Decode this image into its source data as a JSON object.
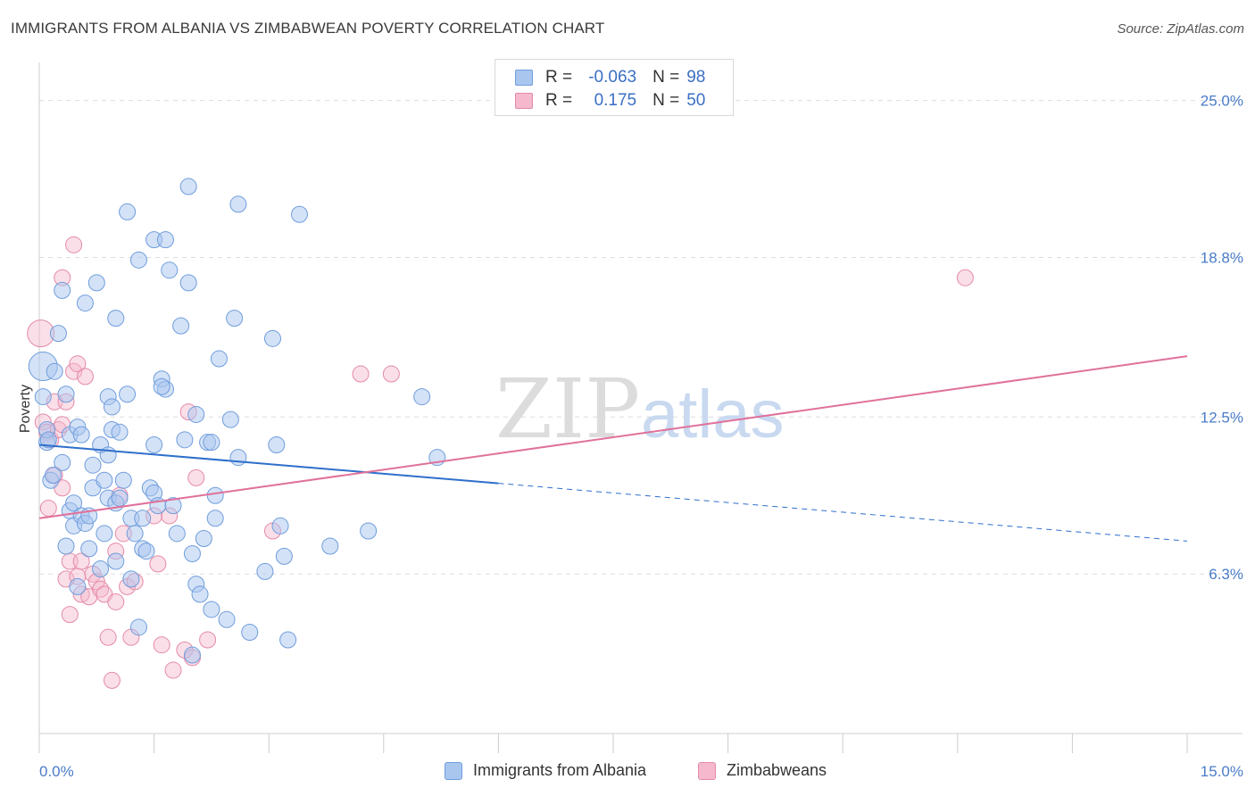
{
  "title": "IMMIGRANTS FROM ALBANIA VS ZIMBABWEAN POVERTY CORRELATION CHART",
  "source": "Source: ZipAtlas.com",
  "watermark": {
    "zip": "ZIP",
    "atlas": "atlas"
  },
  "legend_top": [
    {
      "r_label": "R =",
      "r_value": "-0.063",
      "n_label": "N =",
      "n_value": "98"
    },
    {
      "r_label": "R =",
      "r_value": "0.175",
      "n_label": "N =",
      "n_value": "50"
    }
  ],
  "legend_bottom": [
    "Immigrants from Albania",
    "Zimbabweans"
  ],
  "colors": {
    "blue_fill": "#a9c6ef",
    "blue_stroke": "#6f9ddc",
    "blue_line": "#2e6fcb",
    "pink_fill": "#f5b8cc",
    "pink_stroke": "#e58aa8",
    "pink_line": "#e0719b",
    "grid": "#dddddd",
    "tick_text": "#4a7cc8"
  },
  "chart_data": {
    "type": "scatter",
    "title": "IMMIGRANTS FROM ALBANIA VS ZIMBABWEAN POVERTY CORRELATION CHART",
    "xlabel": "",
    "ylabel": "Poverty",
    "xlim": [
      0,
      15
    ],
    "ylim": [
      0,
      26.5
    ],
    "x_tick_labels": [
      "0.0%",
      "15.0%"
    ],
    "y_ticks": [
      6.3,
      12.5,
      18.8,
      25.0
    ],
    "y_tick_labels": [
      "6.3%",
      "12.5%",
      "18.8%",
      "25.0%"
    ],
    "grid": true,
    "series": [
      {
        "name": "Immigrants from Albania",
        "color": "#a9c6ef",
        "r": -0.063,
        "n": 98,
        "trend": {
          "x0": 0,
          "y0": 11.4,
          "x_solid_end": 6.0,
          "x1": 15,
          "y1": 7.6
        },
        "points": [
          [
            0.05,
            14.5
          ],
          [
            0.05,
            13.3
          ],
          [
            0.1,
            11.5
          ],
          [
            0.1,
            12.0
          ],
          [
            0.15,
            10.0
          ],
          [
            0.2,
            14.3
          ],
          [
            0.25,
            15.8
          ],
          [
            0.3,
            17.5
          ],
          [
            0.3,
            10.7
          ],
          [
            0.35,
            13.4
          ],
          [
            0.35,
            7.4
          ],
          [
            0.4,
            11.8
          ],
          [
            0.4,
            8.8
          ],
          [
            0.45,
            9.1
          ],
          [
            0.45,
            8.2
          ],
          [
            0.5,
            5.8
          ],
          [
            0.5,
            12.1
          ],
          [
            0.55,
            8.6
          ],
          [
            0.6,
            8.3
          ],
          [
            0.6,
            17.0
          ],
          [
            0.65,
            8.6
          ],
          [
            0.65,
            7.3
          ],
          [
            0.7,
            10.6
          ],
          [
            0.7,
            9.7
          ],
          [
            0.75,
            17.8
          ],
          [
            0.8,
            11.4
          ],
          [
            0.8,
            6.5
          ],
          [
            0.85,
            10.0
          ],
          [
            0.85,
            7.9
          ],
          [
            0.9,
            9.3
          ],
          [
            0.9,
            11.0
          ],
          [
            0.9,
            13.3
          ],
          [
            0.95,
            12.0
          ],
          [
            0.95,
            12.9
          ],
          [
            1.0,
            6.8
          ],
          [
            1.0,
            9.1
          ],
          [
            1.0,
            16.4
          ],
          [
            1.05,
            11.9
          ],
          [
            1.1,
            10.0
          ],
          [
            1.15,
            13.4
          ],
          [
            1.15,
            20.6
          ],
          [
            1.2,
            8.5
          ],
          [
            1.2,
            6.1
          ],
          [
            1.25,
            7.9
          ],
          [
            1.3,
            18.7
          ],
          [
            1.3,
            4.2
          ],
          [
            1.35,
            7.3
          ],
          [
            1.35,
            8.5
          ],
          [
            1.4,
            7.2
          ],
          [
            1.45,
            9.7
          ],
          [
            1.5,
            9.5
          ],
          [
            1.5,
            19.5
          ],
          [
            1.5,
            11.4
          ],
          [
            1.55,
            9.0
          ],
          [
            1.6,
            14.0
          ],
          [
            1.65,
            13.6
          ],
          [
            1.65,
            19.5
          ],
          [
            1.7,
            18.3
          ],
          [
            1.75,
            9.0
          ],
          [
            1.8,
            7.9
          ],
          [
            1.85,
            16.1
          ],
          [
            1.9,
            11.6
          ],
          [
            1.95,
            21.6
          ],
          [
            1.95,
            17.8
          ],
          [
            2.0,
            7.1
          ],
          [
            2.0,
            3.1
          ],
          [
            2.05,
            12.6
          ],
          [
            2.05,
            5.9
          ],
          [
            2.1,
            5.5
          ],
          [
            2.15,
            7.7
          ],
          [
            2.2,
            11.5
          ],
          [
            2.25,
            11.5
          ],
          [
            2.25,
            4.9
          ],
          [
            2.3,
            8.5
          ],
          [
            2.3,
            9.4
          ],
          [
            2.35,
            14.8
          ],
          [
            2.45,
            4.5
          ],
          [
            2.5,
            12.4
          ],
          [
            2.55,
            16.4
          ],
          [
            2.6,
            10.9
          ],
          [
            2.6,
            20.9
          ],
          [
            2.75,
            4.0
          ],
          [
            2.95,
            6.4
          ],
          [
            3.05,
            15.6
          ],
          [
            3.1,
            11.4
          ],
          [
            3.15,
            8.2
          ],
          [
            3.2,
            7.0
          ],
          [
            3.25,
            3.7
          ],
          [
            3.4,
            20.5
          ],
          [
            3.8,
            7.4
          ],
          [
            4.3,
            8.0
          ],
          [
            5.0,
            13.3
          ],
          [
            5.2,
            10.9
          ],
          [
            0.12,
            11.6
          ],
          [
            0.18,
            10.2
          ],
          [
            0.55,
            11.8
          ],
          [
            1.05,
            9.3
          ],
          [
            1.6,
            13.7
          ]
        ]
      },
      {
        "name": "Zimbabweans",
        "color": "#f5b8cc",
        "r": 0.175,
        "n": 50,
        "trend": {
          "x0": 0,
          "y0": 8.5,
          "x1": 15,
          "y1": 14.9
        },
        "points": [
          [
            0.02,
            15.8
          ],
          [
            0.05,
            12.3
          ],
          [
            0.1,
            11.9
          ],
          [
            0.15,
            11.6
          ],
          [
            0.2,
            13.1
          ],
          [
            0.2,
            10.2
          ],
          [
            0.25,
            12.0
          ],
          [
            0.3,
            12.2
          ],
          [
            0.3,
            9.7
          ],
          [
            0.3,
            18.0
          ],
          [
            0.35,
            13.1
          ],
          [
            0.35,
            6.1
          ],
          [
            0.4,
            4.7
          ],
          [
            0.4,
            6.8
          ],
          [
            0.45,
            14.3
          ],
          [
            0.45,
            19.3
          ],
          [
            0.5,
            14.6
          ],
          [
            0.5,
            6.2
          ],
          [
            0.55,
            6.8
          ],
          [
            0.55,
            5.5
          ],
          [
            0.6,
            14.1
          ],
          [
            0.65,
            5.4
          ],
          [
            0.7,
            6.3
          ],
          [
            0.75,
            6.0
          ],
          [
            0.8,
            5.7
          ],
          [
            0.85,
            5.5
          ],
          [
            0.9,
            3.8
          ],
          [
            0.95,
            2.1
          ],
          [
            1.0,
            5.2
          ],
          [
            1.0,
            7.2
          ],
          [
            1.05,
            9.4
          ],
          [
            1.1,
            7.9
          ],
          [
            1.15,
            5.8
          ],
          [
            1.2,
            3.8
          ],
          [
            1.25,
            6.0
          ],
          [
            1.5,
            8.6
          ],
          [
            1.55,
            6.7
          ],
          [
            1.6,
            3.5
          ],
          [
            1.7,
            8.6
          ],
          [
            1.75,
            2.5
          ],
          [
            1.9,
            3.3
          ],
          [
            1.95,
            12.7
          ],
          [
            2.0,
            3.0
          ],
          [
            2.05,
            10.1
          ],
          [
            2.2,
            3.7
          ],
          [
            3.05,
            8.0
          ],
          [
            4.2,
            14.2
          ],
          [
            4.6,
            14.2
          ],
          [
            12.1,
            18.0
          ],
          [
            0.12,
            8.9
          ]
        ]
      }
    ]
  }
}
